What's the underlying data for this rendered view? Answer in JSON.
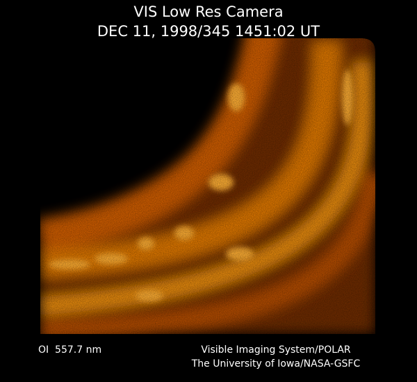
{
  "header": {
    "title": "VIS Low Res Camera",
    "timestamp": "DEC 11, 1998/345 1451:02 UT"
  },
  "footer": {
    "wavelength": "OI  557.7 nm",
    "credit_line1": "Visible Imaging System/POLAR",
    "credit_line2": "The University of Iowa/NASA-GSFC"
  }
}
